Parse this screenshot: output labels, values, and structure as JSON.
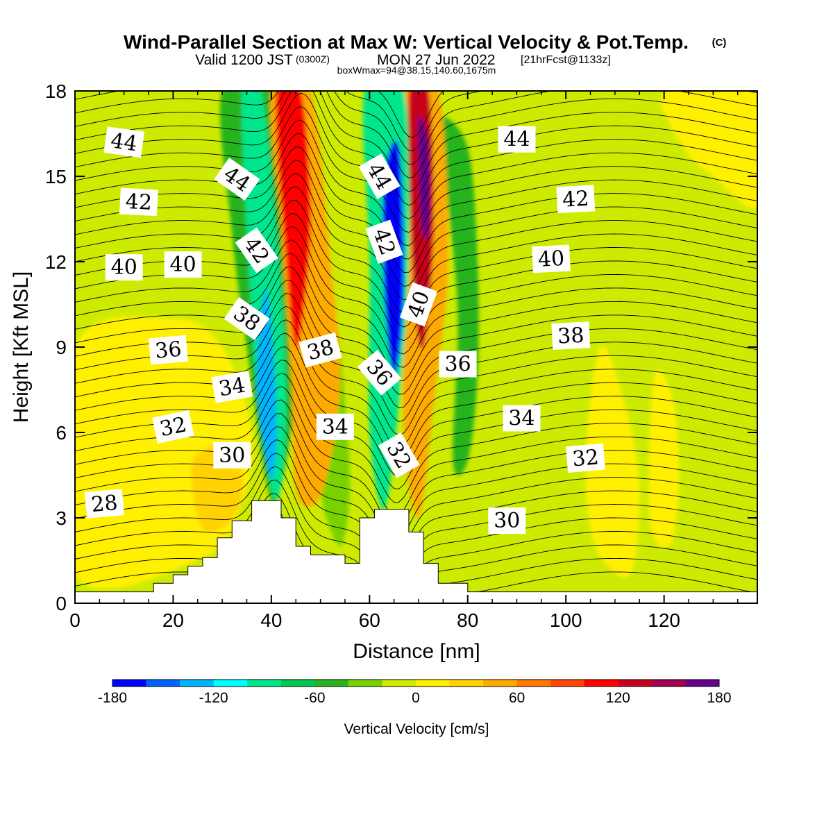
{
  "header": {
    "title": "Wind-Parallel Section at Max W: Vertical Velocity & Pot.Temp.",
    "copyright": "(C)",
    "valid_prefix": "Valid 1200 JST",
    "valid_zulu": "(0300Z)",
    "valid_date": "MON 27 Jun 2022",
    "forecast": "[21hrFcst@1133z]",
    "boxwmax": "boxWmax=94@38.15,140.60,1675m"
  },
  "chart_data": {
    "type": "heatmap",
    "xlabel": "Distance [nm]",
    "ylabel": "Height [Kft MSL]",
    "xlim": [
      0,
      139
    ],
    "ylim": [
      0,
      18
    ],
    "x_ticks": [
      0,
      20,
      40,
      60,
      80,
      100,
      120
    ],
    "x_tick_labels": [
      "0",
      "20",
      "40",
      "60",
      "80",
      "100",
      "120"
    ],
    "y_ticks": [
      0,
      3,
      6,
      9,
      12,
      15,
      18
    ],
    "y_tick_labels": [
      "0",
      "3",
      "6",
      "9",
      "12",
      "15",
      "18"
    ],
    "colorbar": {
      "label": "Vertical Velocity [cm/s]",
      "min": -180,
      "max": 180,
      "step": 20,
      "tick_values": [
        -180,
        -120,
        -60,
        0,
        60,
        120,
        180
      ],
      "tick_labels": [
        "-180",
        "-120",
        "-60",
        "0",
        "60",
        "120",
        "180"
      ],
      "colors": [
        "#0000ff",
        "#0064ff",
        "#00b4ff",
        "#00ffff",
        "#00e68c",
        "#00c850",
        "#28b41e",
        "#78d200",
        "#cdeb00",
        "#fff000",
        "#ffd200",
        "#ffaa00",
        "#ff7800",
        "#ff4600",
        "#ff0000",
        "#c8001e",
        "#a00050",
        "#64008c"
      ]
    },
    "background_level": 0,
    "terrain": [
      [
        0,
        0.4
      ],
      [
        16,
        0.4
      ],
      [
        16,
        0.7
      ],
      [
        20,
        0.7
      ],
      [
        20,
        1.0
      ],
      [
        23,
        1.0
      ],
      [
        23,
        1.3
      ],
      [
        26,
        1.3
      ],
      [
        26,
        1.6
      ],
      [
        29,
        1.6
      ],
      [
        29,
        2.3
      ],
      [
        32,
        2.3
      ],
      [
        32,
        2.9
      ],
      [
        36,
        2.9
      ],
      [
        36,
        3.6
      ],
      [
        42,
        3.6
      ],
      [
        42,
        3.0
      ],
      [
        45,
        3.0
      ],
      [
        45,
        2.0
      ],
      [
        48,
        2.0
      ],
      [
        48,
        1.7
      ],
      [
        55,
        1.7
      ],
      [
        55,
        1.4
      ],
      [
        58,
        1.4
      ],
      [
        58,
        3.0
      ],
      [
        61,
        3.0
      ],
      [
        61,
        3.3
      ],
      [
        68,
        3.3
      ],
      [
        68,
        2.5
      ],
      [
        71,
        2.5
      ],
      [
        71,
        1.4
      ],
      [
        74,
        1.4
      ],
      [
        74,
        0.7
      ],
      [
        80,
        0.7
      ],
      [
        80,
        0.4
      ],
      [
        139,
        0.4
      ]
    ],
    "bands": [
      {
        "name": "upwind-green",
        "value": -60,
        "pts": [
          [
            30,
            18
          ],
          [
            41,
            18
          ],
          [
            46,
            10
          ],
          [
            44,
            6
          ],
          [
            40,
            3.6
          ],
          [
            35,
            9
          ],
          [
            32,
            13
          ]
        ]
      },
      {
        "name": "w-neg-1-outer",
        "value": -100,
        "pts": [
          [
            34,
            18
          ],
          [
            38,
            18
          ],
          [
            42,
            11
          ],
          [
            43,
            6
          ],
          [
            41,
            3.6
          ],
          [
            38,
            6
          ],
          [
            36,
            10
          ]
        ]
      },
      {
        "name": "w-neg-1-core",
        "value": -140,
        "pts": [
          [
            37,
            8
          ],
          [
            39,
            11
          ],
          [
            41,
            7
          ],
          [
            40.5,
            4.5
          ],
          [
            39,
            5
          ]
        ]
      },
      {
        "name": "w-pos-1-outer",
        "value": 60,
        "pts": [
          [
            40,
            18
          ],
          [
            48,
            18
          ],
          [
            52,
            12
          ],
          [
            54,
            8
          ],
          [
            52,
            5
          ],
          [
            49,
            3.5
          ],
          [
            45,
            4
          ],
          [
            44,
            8
          ],
          [
            42,
            13
          ]
        ]
      },
      {
        "name": "w-pos-1-core",
        "value": 120,
        "pts": [
          [
            41,
            18
          ],
          [
            46,
            18
          ],
          [
            48,
            14
          ],
          [
            47,
            11
          ],
          [
            45,
            9
          ],
          [
            43,
            12
          ]
        ]
      },
      {
        "name": "mid-green",
        "value": -40,
        "pts": [
          [
            50,
            4
          ],
          [
            54,
            2
          ],
          [
            56,
            4
          ],
          [
            55,
            7
          ],
          [
            53,
            10
          ],
          [
            51,
            7
          ]
        ]
      },
      {
        "name": "w-neg-2-outer",
        "value": -100,
        "pts": [
          [
            59,
            18
          ],
          [
            67,
            18
          ],
          [
            68,
            12
          ],
          [
            66,
            7
          ],
          [
            63,
            3.3
          ],
          [
            60,
            6
          ],
          [
            60,
            12
          ]
        ]
      },
      {
        "name": "w-neg-2-core",
        "value": -180,
        "pts": [
          [
            63,
            15
          ],
          [
            66,
            16
          ],
          [
            67,
            11
          ],
          [
            65,
            8
          ],
          [
            63,
            11
          ]
        ]
      },
      {
        "name": "w-pos-2-outer",
        "value": 60,
        "pts": [
          [
            67,
            18
          ],
          [
            74,
            18
          ],
          [
            76,
            12
          ],
          [
            73,
            7
          ],
          [
            70,
            3
          ],
          [
            67,
            6
          ],
          [
            67,
            12
          ]
        ]
      },
      {
        "name": "w-pos-2-core",
        "value": 140,
        "pts": [
          [
            68,
            18
          ],
          [
            72,
            18
          ],
          [
            73,
            13
          ],
          [
            71,
            9
          ],
          [
            69,
            11
          ]
        ]
      },
      {
        "name": "w-pos-2-peak",
        "value": 180,
        "pts": [
          [
            70,
            17
          ],
          [
            72,
            16
          ],
          [
            72,
            13
          ],
          [
            70.5,
            13.5
          ]
        ]
      },
      {
        "name": "downwind-green",
        "value": -60,
        "pts": [
          [
            74,
            17
          ],
          [
            80,
            16
          ],
          [
            82,
            12
          ],
          [
            82,
            8
          ],
          [
            80,
            5
          ],
          [
            77,
            5
          ],
          [
            78,
            10
          ],
          [
            76,
            14
          ]
        ]
      },
      {
        "name": "lee-yellow-1",
        "value": 20,
        "pts": [
          [
            107,
            9
          ],
          [
            112,
            7
          ],
          [
            115,
            4
          ],
          [
            113,
            1
          ],
          [
            106,
            2
          ],
          [
            104,
            5
          ]
        ]
      },
      {
        "name": "lee-yellow-2",
        "value": 20,
        "pts": [
          [
            118,
            8
          ],
          [
            122,
            7
          ],
          [
            123,
            4
          ],
          [
            121,
            2
          ],
          [
            117,
            3
          ]
        ]
      },
      {
        "name": "west-yellow",
        "value": 20,
        "pts": [
          [
            0,
            9
          ],
          [
            20,
            10
          ],
          [
            30,
            9
          ],
          [
            36,
            6
          ],
          [
            34,
            3.5
          ],
          [
            26,
            1.6
          ],
          [
            0,
            1
          ]
        ]
      },
      {
        "name": "west-orange",
        "value": 40,
        "pts": [
          [
            24,
            5
          ],
          [
            30,
            5.5
          ],
          [
            34,
            4.5
          ],
          [
            33,
            3.2
          ],
          [
            28,
            2.5
          ],
          [
            25,
            3
          ]
        ]
      },
      {
        "name": "top-right-yellow",
        "value": 20,
        "pts": [
          [
            120,
            18
          ],
          [
            139,
            18
          ],
          [
            139,
            14
          ],
          [
            130,
            15
          ],
          [
            124,
            16
          ]
        ]
      }
    ],
    "theta_levels": [
      28,
      30,
      32,
      34,
      36,
      38,
      40,
      42,
      44
    ],
    "theta_labels": [
      {
        "text": "44",
        "x": 10,
        "y": 16.2,
        "rot": 8
      },
      {
        "text": "44",
        "x": 33,
        "y": 14.9,
        "rot": 35
      },
      {
        "text": "44",
        "x": 62,
        "y": 15.0,
        "rot": 60
      },
      {
        "text": "44",
        "x": 90,
        "y": 16.3,
        "rot": 0
      },
      {
        "text": "42",
        "x": 13,
        "y": 14.1,
        "rot": 3
      },
      {
        "text": "42",
        "x": 102,
        "y": 14.2,
        "rot": -3
      },
      {
        "text": "42",
        "x": 37,
        "y": 12.4,
        "rot": 55
      },
      {
        "text": "42",
        "x": 63,
        "y": 12.7,
        "rot": 70
      },
      {
        "text": "40",
        "x": 10,
        "y": 11.8,
        "rot": 0
      },
      {
        "text": "40",
        "x": 22,
        "y": 11.9,
        "rot": 0
      },
      {
        "text": "40",
        "x": 97,
        "y": 12.1,
        "rot": -3
      },
      {
        "text": "40",
        "x": 70,
        "y": 10.5,
        "rot": -70
      },
      {
        "text": "38",
        "x": 35,
        "y": 10.0,
        "rot": 35
      },
      {
        "text": "38",
        "x": 50,
        "y": 8.9,
        "rot": -15
      },
      {
        "text": "38",
        "x": 101,
        "y": 9.4,
        "rot": -3
      },
      {
        "text": "36",
        "x": 19,
        "y": 8.9,
        "rot": -5
      },
      {
        "text": "36",
        "x": 62,
        "y": 8.1,
        "rot": 50
      },
      {
        "text": "36",
        "x": 78,
        "y": 8.4,
        "rot": 0
      },
      {
        "text": "34",
        "x": 32,
        "y": 7.6,
        "rot": -10
      },
      {
        "text": "34",
        "x": 53,
        "y": 6.2,
        "rot": 0
      },
      {
        "text": "34",
        "x": 91,
        "y": 6.5,
        "rot": 0
      },
      {
        "text": "32",
        "x": 20,
        "y": 6.2,
        "rot": -12
      },
      {
        "text": "32",
        "x": 66,
        "y": 5.2,
        "rot": 60
      },
      {
        "text": "32",
        "x": 104,
        "y": 5.1,
        "rot": -5
      },
      {
        "text": "30",
        "x": 32,
        "y": 5.2,
        "rot": 0
      },
      {
        "text": "30",
        "x": 88,
        "y": 2.9,
        "rot": 0
      },
      {
        "text": "28",
        "x": 6,
        "y": 3.5,
        "rot": -5
      }
    ]
  }
}
